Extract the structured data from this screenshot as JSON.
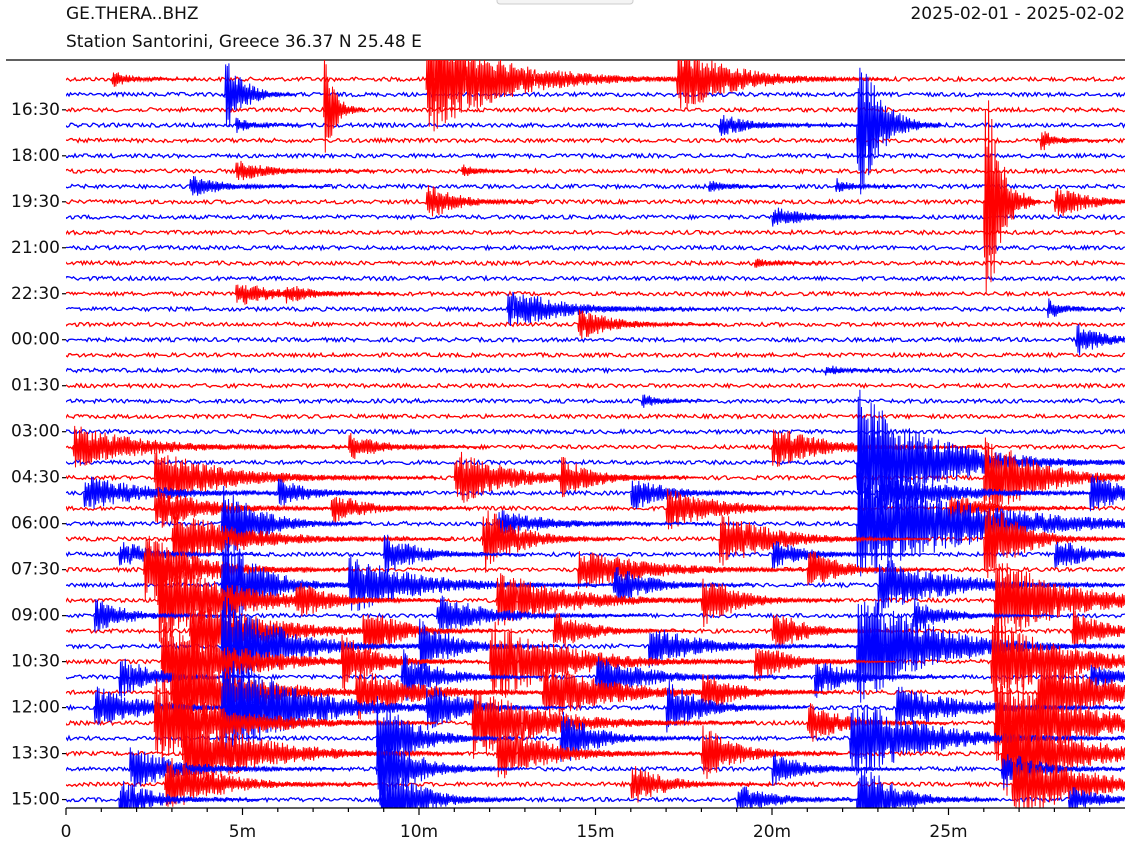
{
  "chart_data": {
    "type": "helicorder",
    "title": "GE.THERA..BHZ",
    "subtitle": "Station Santorini, Greece  36.37 N 25.48 E",
    "date_range": "2025-02-01 - 2025-02-02",
    "colors": [
      "#ff0000",
      "#0000ff"
    ],
    "rows": 48,
    "xlim": [
      0,
      30
    ],
    "xticks": [
      0,
      {
        "value": 5,
        "label": "5m"
      },
      {
        "value": 10,
        "label": "10m"
      },
      {
        "value": 15,
        "label": "15m"
      },
      {
        "value": 20,
        "label": "20m"
      },
      {
        "value": 25,
        "label": "25m"
      }
    ],
    "xminor_ticks": [
      1,
      2,
      3,
      4,
      6,
      7,
      8,
      9,
      11,
      12,
      13,
      14,
      16,
      17,
      18,
      19,
      21,
      22,
      23,
      24,
      26,
      27,
      28,
      29
    ],
    "ylim": [
      -1.25,
      47.55
    ],
    "yticks": [
      {
        "value": 2,
        "label": "16:30"
      },
      {
        "value": 5,
        "label": "18:00"
      },
      {
        "value": 8,
        "label": "19:30"
      },
      {
        "value": 11,
        "label": "21:00"
      },
      {
        "value": 14,
        "label": "22:30"
      },
      {
        "value": 17,
        "label": "00:00"
      },
      {
        "value": 20,
        "label": "01:30"
      },
      {
        "value": 23,
        "label": "03:00"
      },
      {
        "value": 26,
        "label": "04:30"
      },
      {
        "value": 29,
        "label": "06:00"
      },
      {
        "value": 32,
        "label": "07:30"
      },
      {
        "value": 35,
        "label": "09:00"
      },
      {
        "value": 38,
        "label": "10:30"
      },
      {
        "value": 41,
        "label": "12:00"
      },
      {
        "value": 44,
        "label": "13:30"
      },
      {
        "value": 47,
        "label": "15:00"
      }
    ],
    "events": [
      [
        1.3,
        0,
        0.6,
        0.6
      ],
      [
        10.2,
        0,
        4,
        2
      ],
      [
        17.3,
        0,
        2.5,
        1.5
      ],
      [
        4.5,
        1,
        3,
        0.5
      ],
      [
        7.3,
        2,
        4,
        0.3
      ],
      [
        4.8,
        3,
        0.6,
        0.5
      ],
      [
        18.5,
        3,
        0.8,
        1
      ],
      [
        22.4,
        3,
        6,
        0.6
      ],
      [
        27.6,
        4,
        0.8,
        0.5
      ],
      [
        4.8,
        6,
        0.8,
        1
      ],
      [
        11.2,
        6,
        0.5,
        0.5
      ],
      [
        3.5,
        7,
        0.8,
        1
      ],
      [
        18.2,
        7,
        0.5,
        0.5
      ],
      [
        21.8,
        7,
        0.6,
        0.5
      ],
      [
        26,
        8,
        10,
        0.4
      ],
      [
        28,
        8,
        1.2,
        1
      ],
      [
        10.2,
        8,
        1.5,
        0.8
      ],
      [
        20,
        9,
        0.8,
        1
      ],
      [
        19.5,
        12,
        0.4,
        0.5
      ],
      [
        6.2,
        14,
        0.8,
        0.8
      ],
      [
        4.8,
        14,
        1,
        1
      ],
      [
        12.5,
        15,
        1.5,
        1.5
      ],
      [
        27.8,
        15,
        0.8,
        0.5
      ],
      [
        14.5,
        16,
        1.2,
        1
      ],
      [
        28.6,
        17,
        1.2,
        0.8
      ],
      [
        21.5,
        19,
        0.5,
        0.5
      ],
      [
        16.3,
        21,
        0.6,
        0.5
      ],
      [
        0.2,
        24,
        1.5,
        2
      ],
      [
        8,
        24,
        1,
        1
      ],
      [
        20,
        24,
        1.5,
        1.5
      ],
      [
        22.4,
        25,
        5,
        2
      ],
      [
        2.5,
        26,
        2,
        2
      ],
      [
        11,
        26,
        2,
        1.5
      ],
      [
        14,
        26,
        1.5,
        1
      ],
      [
        26,
        26,
        3,
        1.5
      ],
      [
        0.5,
        27,
        1.2,
        2
      ],
      [
        6,
        27,
        1,
        1
      ],
      [
        16,
        27,
        1.3,
        1
      ],
      [
        23,
        27,
        1.5,
        2
      ],
      [
        29,
        27,
        1.5,
        1
      ],
      [
        2.5,
        28,
        1.5,
        1.5
      ],
      [
        7.5,
        28,
        1.2,
        1
      ],
      [
        17,
        28,
        1.5,
        1.5
      ],
      [
        25,
        28,
        1.2,
        1
      ],
      [
        4.4,
        29,
        3,
        1
      ],
      [
        12.2,
        29,
        1,
        1.5
      ],
      [
        22.4,
        29,
        4,
        3
      ],
      [
        3,
        30,
        2,
        2
      ],
      [
        11.8,
        30,
        2.5,
        1
      ],
      [
        18.5,
        30,
        2,
        1.5
      ],
      [
        26,
        30,
        3,
        1
      ],
      [
        1.5,
        31,
        1,
        1
      ],
      [
        9,
        31,
        1.5,
        1
      ],
      [
        20,
        31,
        1,
        1
      ],
      [
        28,
        31,
        1.2,
        1
      ],
      [
        2.2,
        32,
        2.5,
        1.5
      ],
      [
        14.5,
        32,
        1.5,
        2
      ],
      [
        21,
        32,
        1.5,
        1
      ],
      [
        4.4,
        33,
        4,
        1
      ],
      [
        8,
        33,
        2,
        2
      ],
      [
        15.5,
        33,
        1.5,
        1
      ],
      [
        23,
        33,
        2,
        2
      ],
      [
        2.6,
        34,
        3,
        2
      ],
      [
        6.5,
        34,
        1.5,
        1
      ],
      [
        12.2,
        34,
        2,
        2
      ],
      [
        18,
        34,
        2,
        1
      ],
      [
        26.3,
        34,
        3,
        2
      ],
      [
        0.8,
        35,
        1.2,
        1
      ],
      [
        10.5,
        35,
        1.5,
        1.5
      ],
      [
        24,
        35,
        1.2,
        1
      ],
      [
        3.5,
        36,
        2.5,
        2
      ],
      [
        8.4,
        36,
        2,
        1
      ],
      [
        13.8,
        36,
        1.5,
        1
      ],
      [
        20,
        36,
        1.5,
        1
      ],
      [
        28.5,
        36,
        1.5,
        1
      ],
      [
        4.4,
        37,
        4,
        1.5
      ],
      [
        10,
        37,
        2,
        1
      ],
      [
        16.5,
        37,
        1.5,
        1.5
      ],
      [
        22.4,
        37,
        4,
        2
      ],
      [
        2.7,
        38,
        3,
        2
      ],
      [
        7.8,
        38,
        2,
        1
      ],
      [
        12,
        38,
        3,
        2
      ],
      [
        19.5,
        38,
        1.5,
        1
      ],
      [
        26.2,
        38,
        3,
        2
      ],
      [
        1.5,
        39,
        1.5,
        1
      ],
      [
        9.5,
        39,
        2,
        1
      ],
      [
        15,
        39,
        1.5,
        1.5
      ],
      [
        21.2,
        39,
        1.5,
        1
      ],
      [
        29,
        39,
        1,
        1
      ],
      [
        3,
        40,
        3,
        2
      ],
      [
        8.2,
        40,
        2,
        1.5
      ],
      [
        13.5,
        40,
        2,
        2
      ],
      [
        18,
        40,
        1.5,
        1
      ],
      [
        27.5,
        40,
        2.5,
        2
      ],
      [
        0.8,
        41,
        1.5,
        1.5
      ],
      [
        4.4,
        41,
        4,
        2
      ],
      [
        10.2,
        41,
        2,
        1
      ],
      [
        17,
        41,
        2,
        1
      ],
      [
        23.5,
        41,
        1.5,
        2
      ],
      [
        2.5,
        42,
        3,
        2
      ],
      [
        11.5,
        42,
        2.5,
        2
      ],
      [
        21,
        42,
        1.5,
        1
      ],
      [
        26.3,
        42,
        4,
        2
      ],
      [
        8.8,
        43,
        3,
        1
      ],
      [
        14,
        43,
        2,
        1
      ],
      [
        22.2,
        43,
        3,
        2
      ],
      [
        3.3,
        44,
        3,
        2
      ],
      [
        12.2,
        44,
        2,
        1.5
      ],
      [
        18,
        44,
        2,
        1
      ],
      [
        26.5,
        44,
        3,
        2
      ],
      [
        1.8,
        45,
        1.5,
        1.5
      ],
      [
        8.8,
        45,
        3,
        1
      ],
      [
        20,
        45,
        1.2,
        1
      ],
      [
        26.5,
        45,
        1.5,
        1
      ],
      [
        2.8,
        46,
        2,
        1.5
      ],
      [
        16,
        46,
        1.5,
        1
      ],
      [
        26.8,
        46,
        2.5,
        2
      ],
      [
        1.5,
        47,
        1.5,
        1
      ],
      [
        8.9,
        47,
        3,
        1
      ],
      [
        19,
        47,
        1.2,
        1
      ],
      [
        22.4,
        47,
        3,
        1
      ],
      [
        28.4,
        47,
        1,
        1
      ]
    ]
  }
}
